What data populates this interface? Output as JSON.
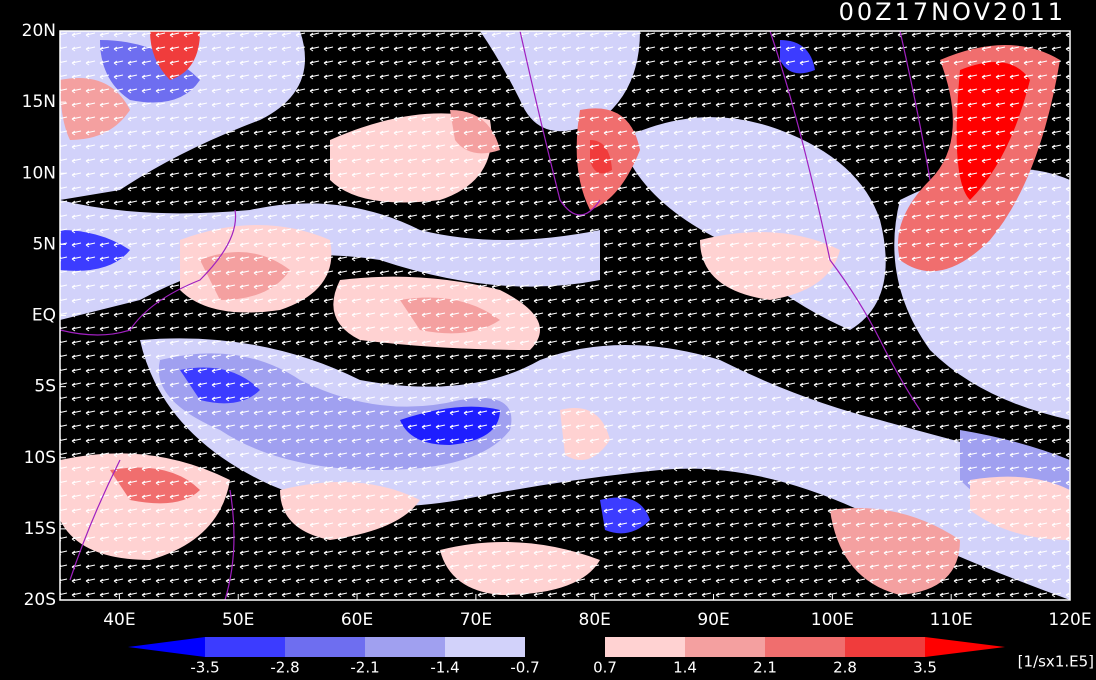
{
  "title": "00Z17NOV2011",
  "map": {
    "lat_labels": [
      "20N",
      "15N",
      "10N",
      "5N",
      "EQ",
      "5S",
      "10S",
      "15S",
      "20S"
    ],
    "lon_labels": [
      "40E",
      "50E",
      "60E",
      "70E",
      "80E",
      "90E",
      "100E",
      "110E",
      "120E"
    ]
  },
  "colorbar": {
    "labels": [
      "-3.5",
      "-2.8",
      "-2.1",
      "-1.4",
      "-0.7",
      "0.7",
      "1.4",
      "2.1",
      "2.8",
      "3.5"
    ],
    "units": "[1/sx1.E5]"
  }
}
